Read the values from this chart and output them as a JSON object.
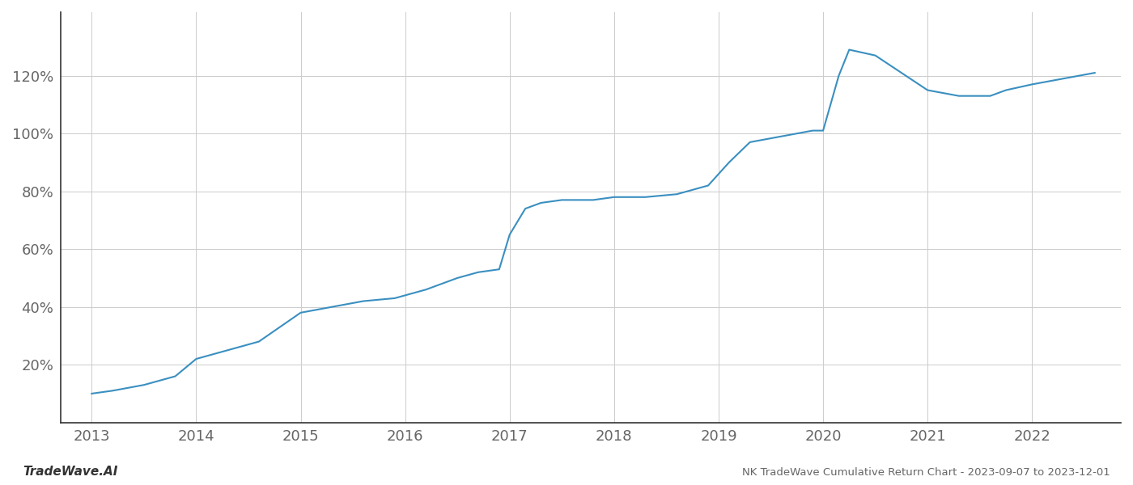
{
  "x_values": [
    2013.0,
    2013.2,
    2013.5,
    2013.8,
    2014.0,
    2014.3,
    2014.6,
    2015.0,
    2015.3,
    2015.6,
    2015.9,
    2016.2,
    2016.5,
    2016.7,
    2016.9,
    2017.0,
    2017.15,
    2017.3,
    2017.5,
    2017.8,
    2018.0,
    2018.3,
    2018.6,
    2018.9,
    2019.1,
    2019.3,
    2019.6,
    2019.75,
    2019.9,
    2020.0,
    2020.15,
    2020.25,
    2020.5,
    2021.0,
    2021.3,
    2021.6,
    2021.75,
    2022.0,
    2022.3,
    2022.6
  ],
  "y_values": [
    10,
    11,
    13,
    16,
    22,
    25,
    28,
    38,
    40,
    42,
    43,
    46,
    50,
    52,
    53,
    65,
    74,
    76,
    77,
    77,
    78,
    78,
    79,
    82,
    90,
    97,
    99,
    100,
    101,
    101,
    120,
    129,
    127,
    115,
    113,
    113,
    115,
    117,
    119,
    121
  ],
  "line_color": "#3a8fc0",
  "line_width": 1.5,
  "background_color": "#ffffff",
  "grid_color": "#cccccc",
  "title": "NK TradeWave Cumulative Return Chart - 2023-09-07 to 2023-12-01",
  "watermark": "TradeWave.AI",
  "x_ticks": [
    2013,
    2014,
    2015,
    2016,
    2017,
    2018,
    2019,
    2020,
    2021,
    2022
  ],
  "y_ticks": [
    20,
    40,
    60,
    80,
    100,
    120
  ],
  "y_tick_labels": [
    "20%",
    "40%",
    "60%",
    "80%",
    "100%",
    "120%"
  ],
  "xlim": [
    2012.7,
    2022.85
  ],
  "ylim": [
    0,
    142
  ]
}
